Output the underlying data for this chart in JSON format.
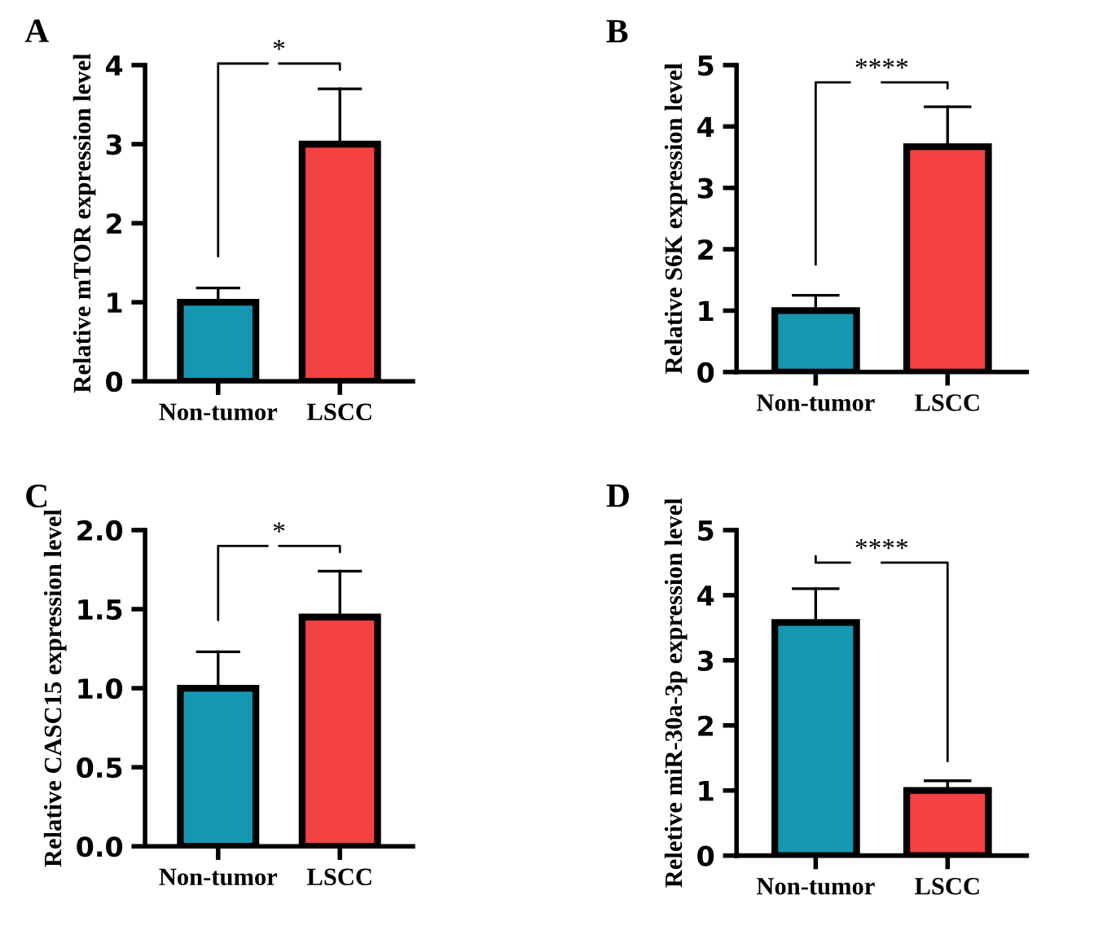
{
  "chart_data": [
    {
      "type": "bar",
      "title": "A",
      "ylabel": "Relative mTOR expression level",
      "categories": [
        "Non-tumor",
        "LSCC"
      ],
      "values": [
        1.0,
        3.0
      ],
      "colors": [
        "#1697b0",
        "#f44141"
      ],
      "errors": [
        [
          1.0,
          1.18
        ],
        [
          3.0,
          3.7
        ]
      ],
      "ylim": [
        0,
        4
      ],
      "yticks": [
        0,
        1,
        2,
        3,
        4
      ],
      "grid": false,
      "annotations": [
        "*"
      ]
    },
    {
      "type": "bar",
      "title": "B",
      "ylabel": "Relative S6K expression level",
      "categories": [
        "Non-tumor",
        "LSCC"
      ],
      "values": [
        1.0,
        3.67
      ],
      "colors": [
        "#1697b0",
        "#f44141"
      ],
      "errors": [
        [
          1.0,
          1.25
        ],
        [
          3.67,
          4.32
        ]
      ],
      "ylim": [
        0,
        5
      ],
      "yticks": [
        0,
        1,
        2,
        3,
        4,
        5
      ],
      "grid": false,
      "annotations": [
        "****"
      ]
    },
    {
      "type": "bar",
      "title": "C",
      "ylabel": "Relative CASC15 expression level",
      "categories": [
        "Non-tumor",
        "LSCC"
      ],
      "values": [
        1.0,
        1.45
      ],
      "colors": [
        "#1697b0",
        "#f44141"
      ],
      "errors": [
        [
          1.0,
          1.23
        ],
        [
          1.45,
          1.74
        ]
      ],
      "ylim": [
        0,
        2.0
      ],
      "yticks": [
        {
          "value": 0,
          "label": "0.0"
        },
        0.5,
        {
          "value": 1,
          "label": "1.0"
        },
        1.5,
        {
          "value": 2,
          "label": "2.0"
        }
      ],
      "grid": false,
      "annotations": [
        "*"
      ]
    },
    {
      "type": "bar",
      "title": "D",
      "ylabel": "Reletive miR-30a-3p expression level",
      "categories": [
        "Non-tumor",
        "LSCC"
      ],
      "values": [
        3.58,
        1.0
      ],
      "colors": [
        "#1697b0",
        "#f44141"
      ],
      "errors": [
        [
          3.58,
          4.1
        ],
        [
          1.0,
          1.15
        ]
      ],
      "ylim": [
        0,
        5
      ],
      "yticks": [
        0,
        1,
        2,
        3,
        4,
        5
      ],
      "grid": false,
      "annotations": [
        "****"
      ]
    }
  ]
}
